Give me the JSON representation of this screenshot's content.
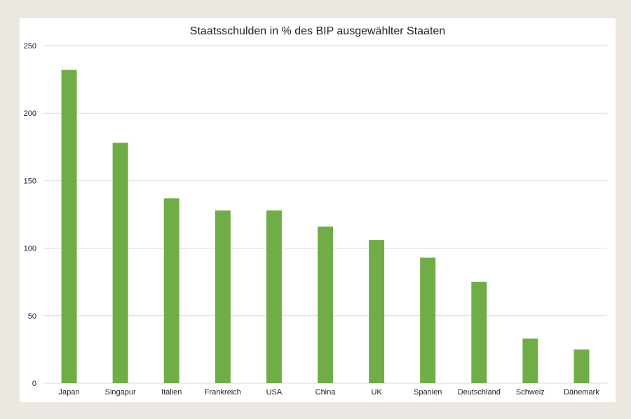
{
  "colors": {
    "bar": "#70ad47",
    "grid": "#d9d9d9",
    "background": "#ece7e0",
    "panel": "#ffffff"
  },
  "chart_data": {
    "type": "bar",
    "title": "Staatsschulden in % des BIP ausgewählter Staaten",
    "xlabel": "",
    "ylabel": "",
    "categories": [
      "Japan",
      "Singapur",
      "Italien",
      "Frankreich",
      "USA",
      "China",
      "UK",
      "Spanien",
      "Deutschland",
      "Schweiz",
      "Dänemark"
    ],
    "values": [
      232,
      178,
      137,
      128,
      128,
      116,
      106,
      93,
      75,
      33,
      25
    ],
    "ylim": [
      0,
      250
    ],
    "yticks": [
      0,
      50,
      100,
      150,
      200,
      250
    ],
    "grid": true,
    "legend": "none"
  }
}
